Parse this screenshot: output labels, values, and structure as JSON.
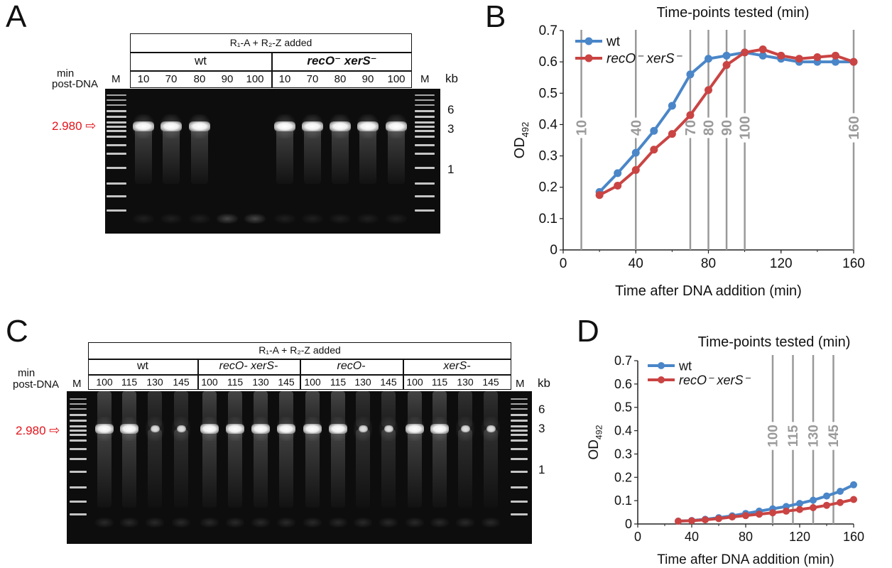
{
  "panels": {
    "A": {
      "letter": "A",
      "header_title": "R₁-A + R₂-Z added",
      "groups": [
        "wt",
        "recO⁻ xerS⁻"
      ],
      "lane_label_line1": "min",
      "lane_label_line2": "post-DNA",
      "marker": "M",
      "lanes": [
        "10",
        "70",
        "80",
        "90",
        "100",
        "10",
        "70",
        "80",
        "90",
        "100"
      ],
      "kb_label": "kb",
      "kb_ticks": [
        "6",
        "3",
        "1"
      ],
      "band_label": "2.980",
      "band_intensity": [
        1,
        1,
        1,
        0,
        0,
        1,
        1,
        1,
        1,
        1
      ],
      "primer_intensity": [
        0.3,
        0.3,
        0.3,
        0.9,
        0.9,
        0.3,
        0.3,
        0.3,
        0.3,
        0.3
      ]
    },
    "C": {
      "letter": "C",
      "header_title": "R₁-A + R₂-Z added",
      "groups": [
        "wt",
        "recO- xerS-",
        "recO-",
        "xerS-"
      ],
      "lane_label_line1": "min",
      "lane_label_line2": "post-DNA",
      "marker": "M",
      "lanes": [
        "100",
        "115",
        "130",
        "145",
        "100",
        "115",
        "130",
        "145",
        "100",
        "115",
        "130",
        "145",
        "100",
        "115",
        "130",
        "145"
      ],
      "kb_label": "kb",
      "kb_ticks": [
        "6",
        "3",
        "1"
      ],
      "band_label": "2.980",
      "band_intensity": [
        1,
        1,
        0.45,
        0.45,
        1,
        1,
        1,
        1,
        1,
        1,
        0.45,
        0.45,
        1,
        1,
        0.45,
        0.45
      ]
    }
  },
  "chart_data": [
    {
      "panel": "B",
      "type": "line",
      "title": "Time-points tested (min)",
      "xlabel": "Time after DNA addition (min)",
      "ylabel": "OD",
      "ylabel_sub": "492",
      "xlim": [
        0,
        160
      ],
      "ylim": [
        0,
        0.7
      ],
      "xticks": [
        0,
        40,
        80,
        120,
        160
      ],
      "yticks": [
        0,
        0.1,
        0.2,
        0.3,
        0.4,
        0.5,
        0.6,
        0.7
      ],
      "xtick_labels": [
        "0",
        "40",
        "80",
        "120",
        "160"
      ],
      "ytick_labels": [
        "0",
        "0.1",
        "0.2",
        "0.3",
        "0.4",
        "0.5",
        "0.6",
        "0.7"
      ],
      "legend_position": "top-left",
      "timepoints": [
        10,
        40,
        70,
        80,
        90,
        100,
        160
      ],
      "timepoint_labels": [
        "10",
        "40",
        "70",
        "80",
        "90",
        "100",
        "160"
      ],
      "series": [
        {
          "name": "wt",
          "color": "#4a86c8",
          "x": [
            20,
            30,
            40,
            50,
            60,
            70,
            80,
            90,
            100,
            110,
            120,
            130,
            140,
            150,
            160
          ],
          "y": [
            0.185,
            0.245,
            0.31,
            0.38,
            0.46,
            0.56,
            0.61,
            0.62,
            0.63,
            0.62,
            0.61,
            0.6,
            0.6,
            0.6,
            0.6
          ]
        },
        {
          "name": "recO⁻ xerS⁻",
          "color": "#c94443",
          "x": [
            20,
            30,
            40,
            50,
            60,
            70,
            80,
            90,
            100,
            110,
            120,
            130,
            140,
            150,
            160
          ],
          "y": [
            0.175,
            0.205,
            0.255,
            0.32,
            0.37,
            0.43,
            0.51,
            0.59,
            0.63,
            0.64,
            0.62,
            0.61,
            0.615,
            0.62,
            0.6
          ]
        }
      ]
    },
    {
      "panel": "D",
      "type": "line",
      "title": "Time-points tested (min)",
      "xlabel": "Time after DNA addition (min)",
      "ylabel": "OD",
      "ylabel_sub": "492",
      "xlim": [
        0,
        160
      ],
      "ylim": [
        0,
        0.7
      ],
      "xticks": [
        0,
        40,
        80,
        120,
        160
      ],
      "yticks": [
        0,
        0.1,
        0.2,
        0.3,
        0.4,
        0.5,
        0.6,
        0.7
      ],
      "xtick_labels": [
        "0",
        "40",
        "80",
        "120",
        "160"
      ],
      "ytick_labels": [
        "0",
        "0.1",
        "0.2",
        "0.3",
        "0.4",
        "0.5",
        "0.6",
        "0.7"
      ],
      "legend_position": "top-left",
      "timepoints": [
        100,
        115,
        130,
        145
      ],
      "timepoint_labels": [
        "100",
        "115",
        "130",
        "145"
      ],
      "series": [
        {
          "name": "wt",
          "color": "#4a86c8",
          "x": [
            30,
            40,
            50,
            60,
            70,
            80,
            90,
            100,
            110,
            120,
            130,
            140,
            150,
            160
          ],
          "y": [
            0.012,
            0.015,
            0.02,
            0.027,
            0.035,
            0.045,
            0.055,
            0.065,
            0.075,
            0.088,
            0.102,
            0.12,
            0.14,
            0.168
          ]
        },
        {
          "name": "recO⁻ xerS⁻",
          "color": "#c94443",
          "x": [
            30,
            40,
            50,
            60,
            70,
            80,
            90,
            100,
            110,
            120,
            130,
            140,
            150,
            160
          ],
          "y": [
            0.012,
            0.014,
            0.018,
            0.023,
            0.03,
            0.036,
            0.042,
            0.048,
            0.055,
            0.062,
            0.07,
            0.08,
            0.092,
            0.105
          ]
        }
      ]
    }
  ]
}
